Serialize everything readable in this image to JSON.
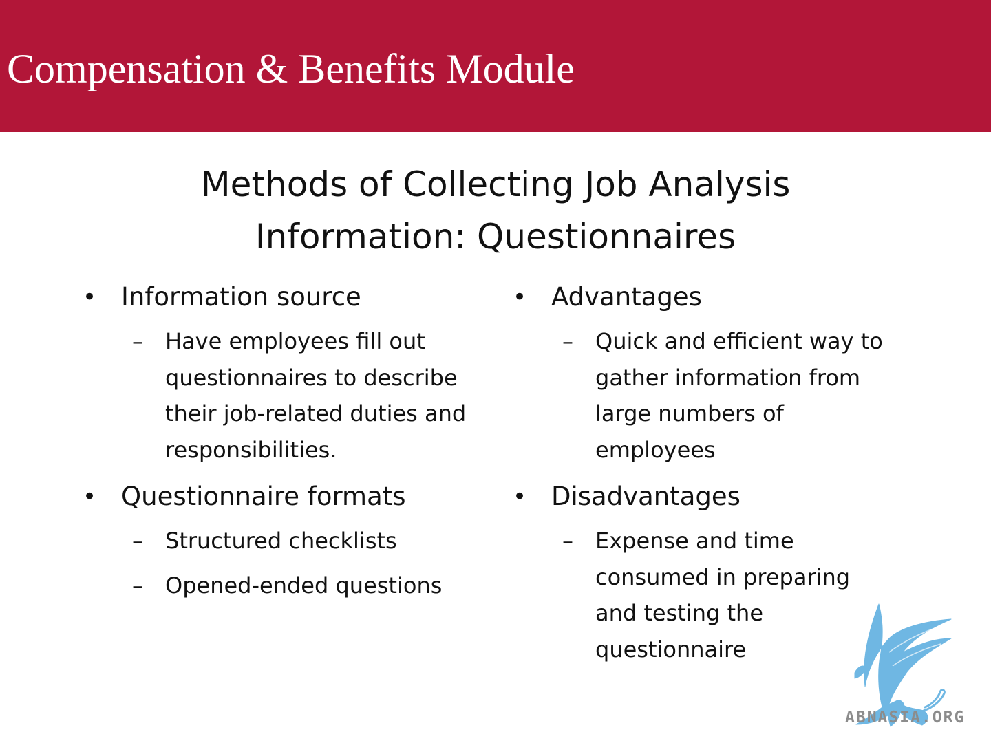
{
  "header": {
    "title": "Compensation & Benefits Module",
    "background_color": "#b21638",
    "text_color": "#ffffff"
  },
  "slide": {
    "title_line1": "Methods of Collecting Job Analysis",
    "title_line2": "Information: Questionnaires"
  },
  "left_column": {
    "bullet1": {
      "label": "Information source",
      "subs": [
        "Have employees fill out questionnaires to describe their job-related duties and responsibilities."
      ]
    },
    "bullet2": {
      "label": "Questionnaire formats",
      "subs": [
        "Structured checklists",
        "Opened-ended questions"
      ]
    }
  },
  "right_column": {
    "bullet1": {
      "label": "Advantages",
      "subs": [
        "Quick and efficient way to gather information from large numbers of employees"
      ]
    },
    "bullet2": {
      "label": "Disadvantages",
      "subs": [
        "Expense and time consumed in preparing and testing the questionnaire"
      ]
    }
  },
  "glyphs": {
    "bullet": "•",
    "dash": "–"
  },
  "watermark": {
    "text": "ABNASIA.ORG",
    "icon": "griffin-logo-icon",
    "color": "#6fb7e3"
  }
}
